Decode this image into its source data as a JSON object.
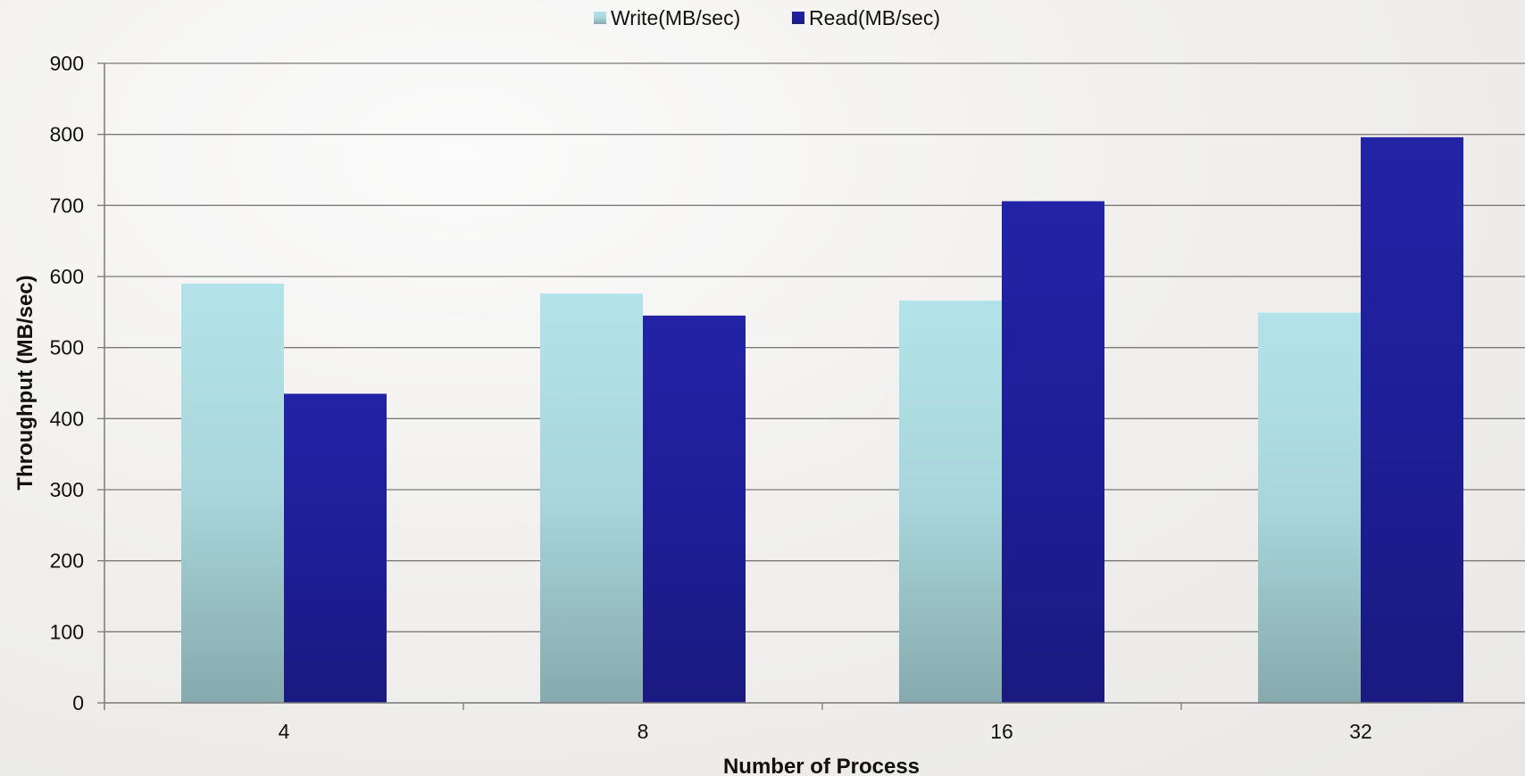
{
  "chart_data": {
    "type": "bar",
    "title": "",
    "xlabel": "Number of Process",
    "ylabel": "Throughput (MB/sec)",
    "categories": [
      "4",
      "8",
      "16",
      "32"
    ],
    "series": [
      {
        "name": "Write(MB/sec)",
        "values": [
          590,
          576,
          566,
          549
        ],
        "color": "#a9dde3"
      },
      {
        "name": "Read(MB/sec)",
        "values": [
          435,
          545,
          706,
          796
        ],
        "color": "#1f1f9a"
      }
    ],
    "ylim": [
      0,
      900
    ],
    "yticks": [
      0,
      100,
      200,
      300,
      400,
      500,
      600,
      700,
      800,
      900
    ],
    "grid": true,
    "legend": "top-center"
  }
}
